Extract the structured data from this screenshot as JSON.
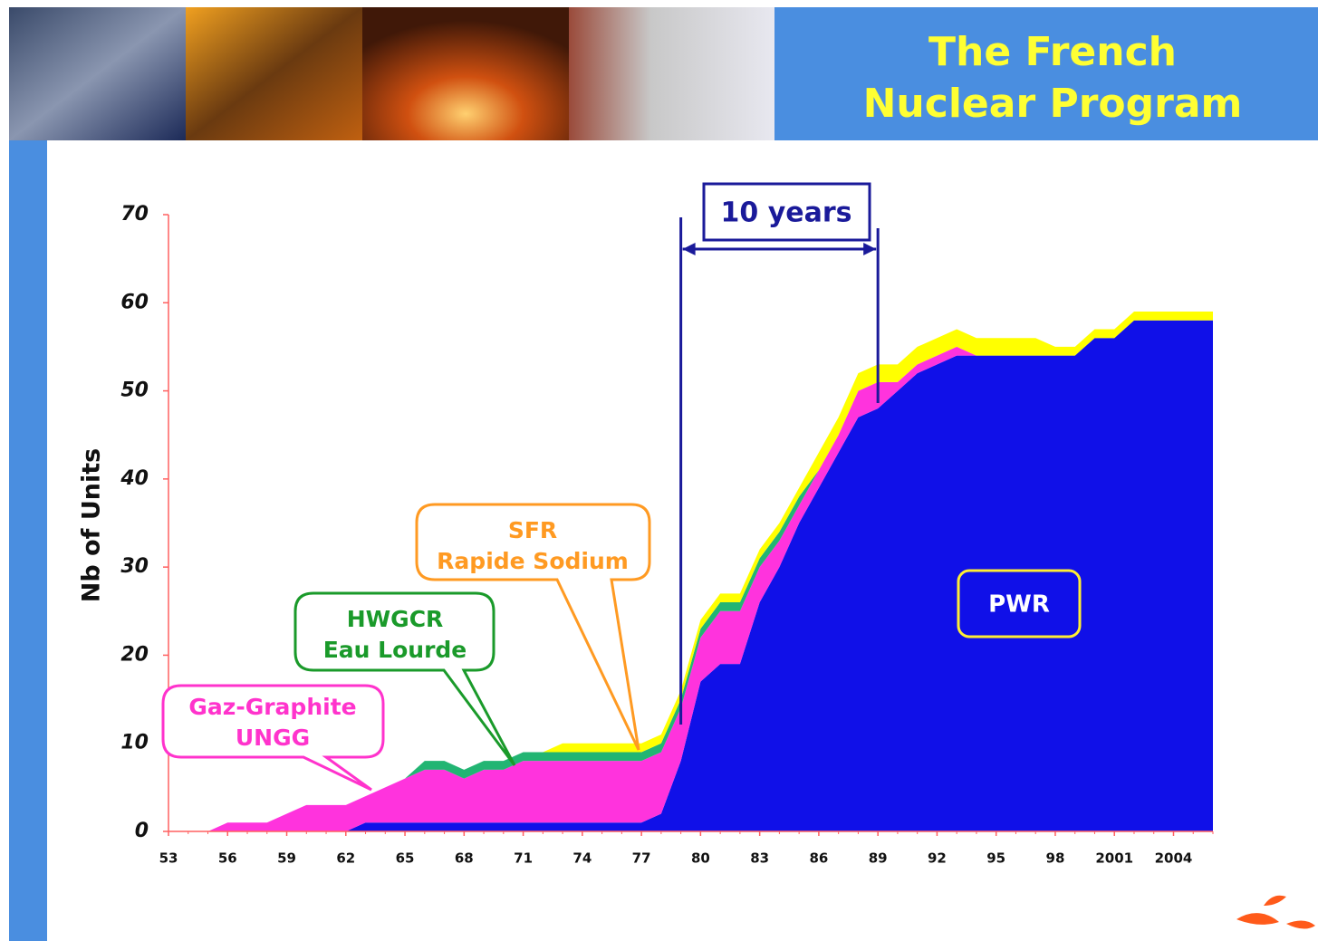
{
  "header": {
    "title_lines": [
      "The French",
      "Nuclear Program"
    ]
  },
  "chart_data": {
    "type": "stacked-area",
    "y_label": "Nb of Units",
    "x": [
      1953,
      1954,
      1955,
      1956,
      1957,
      1958,
      1959,
      1960,
      1961,
      1962,
      1963,
      1964,
      1965,
      1966,
      1967,
      1968,
      1969,
      1970,
      1971,
      1972,
      1973,
      1974,
      1975,
      1976,
      1977,
      1978,
      1979,
      1980,
      1981,
      1982,
      1983,
      1984,
      1985,
      1986,
      1987,
      1988,
      1989,
      1990,
      1991,
      1992,
      1993,
      1994,
      1995,
      1996,
      1997,
      1998,
      1999,
      2000,
      2001,
      2002,
      2003,
      2004,
      2005,
      2006
    ],
    "series": [
      {
        "name": "PWR",
        "color": "#1010e8",
        "values": [
          0,
          0,
          0,
          0,
          0,
          0,
          0,
          0,
          0,
          0,
          1,
          1,
          1,
          1,
          1,
          1,
          1,
          1,
          1,
          1,
          1,
          1,
          1,
          1,
          1,
          2,
          8,
          17,
          19,
          19,
          26,
          30,
          35,
          39,
          43,
          47,
          48,
          50,
          52,
          53,
          54,
          54,
          54,
          54,
          54,
          54,
          54,
          56,
          56,
          58,
          58,
          58,
          58,
          58
        ]
      },
      {
        "name": "UNGG",
        "color": "#ff33dd",
        "values": [
          0,
          0,
          0,
          1,
          1,
          1,
          2,
          3,
          3,
          3,
          3,
          4,
          5,
          6,
          6,
          5,
          6,
          6,
          7,
          7,
          7,
          7,
          7,
          7,
          7,
          7,
          6,
          5,
          6,
          6,
          4,
          3,
          2,
          2,
          2,
          3,
          3,
          1,
          1,
          1,
          1,
          0,
          0,
          0,
          0,
          0,
          0,
          0,
          0,
          0,
          0,
          0,
          0,
          0
        ]
      },
      {
        "name": "HWGCR",
        "color": "#22b573",
        "values": [
          0,
          0,
          0,
          0,
          0,
          0,
          0,
          0,
          0,
          0,
          0,
          0,
          0,
          1,
          1,
          1,
          1,
          1,
          1,
          1,
          1,
          1,
          1,
          1,
          1,
          1,
          1,
          1,
          1,
          1,
          1,
          1,
          1,
          0,
          0,
          0,
          0,
          0,
          0,
          0,
          0,
          0,
          0,
          0,
          0,
          0,
          0,
          0,
          0,
          0,
          0,
          0,
          0,
          0
        ]
      },
      {
        "name": "SFR",
        "color": "#ffff00",
        "values": [
          0,
          0,
          0,
          0,
          0,
          0,
          0,
          0,
          0,
          0,
          0,
          0,
          0,
          0,
          0,
          0,
          0,
          0,
          0,
          0,
          1,
          1,
          1,
          1,
          1,
          1,
          1,
          1,
          1,
          1,
          1,
          1,
          1,
          2,
          2,
          2,
          2,
          2,
          2,
          2,
          2,
          2,
          2,
          2,
          2,
          1,
          1,
          1,
          1,
          1,
          1,
          1,
          1,
          1
        ]
      }
    ],
    "xlim": [
      1953,
      2006
    ],
    "ylim": [
      0,
      70
    ],
    "yticks": [
      0,
      10,
      20,
      30,
      40,
      50,
      60,
      70
    ],
    "xticks": [
      {
        "value": 1953,
        "label": "53"
      },
      {
        "value": 1956,
        "label": "56"
      },
      {
        "value": 1959,
        "label": "59"
      },
      {
        "value": 1962,
        "label": "62"
      },
      {
        "value": 1965,
        "label": "65"
      },
      {
        "value": 1968,
        "label": "68"
      },
      {
        "value": 1971,
        "label": "71"
      },
      {
        "value": 1974,
        "label": "74"
      },
      {
        "value": 1977,
        "label": "77"
      },
      {
        "value": 1980,
        "label": "80"
      },
      {
        "value": 1983,
        "label": "83"
      },
      {
        "value": 1986,
        "label": "86"
      },
      {
        "value": 1989,
        "label": "89"
      },
      {
        "value": 1992,
        "label": "92"
      },
      {
        "value": 1995,
        "label": "95"
      },
      {
        "value": 1998,
        "label": "98"
      },
      2001,
      2004
    ],
    "annotations": {
      "span": {
        "text": "10 years",
        "x": [
          1979,
          1989
        ]
      },
      "notes": [
        "Gaz-Graphite",
        "Eau Lourde",
        "Rapide Sodium"
      ]
    }
  }
}
